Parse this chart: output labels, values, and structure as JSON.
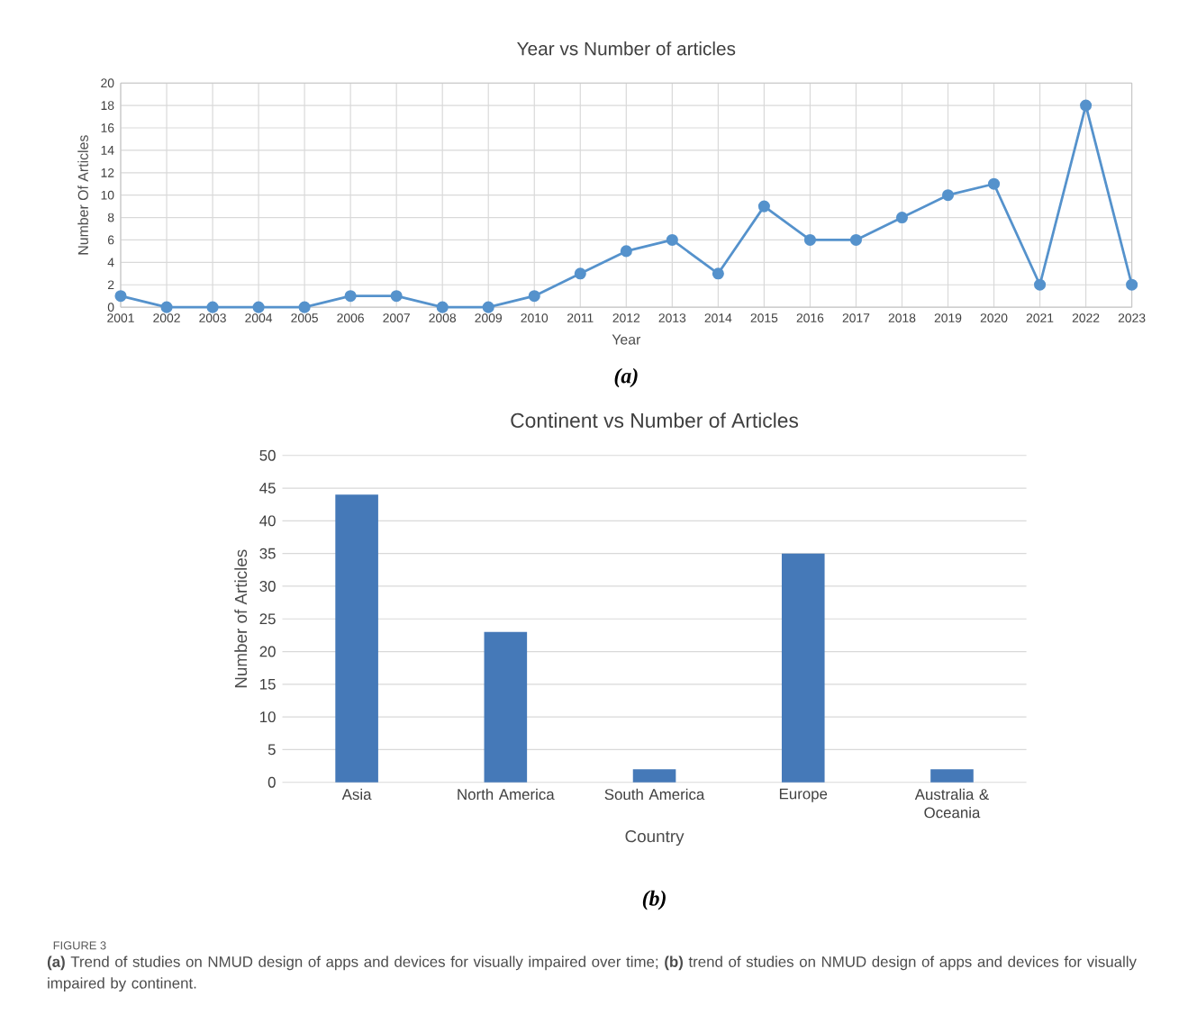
{
  "chart_data": [
    {
      "type": "line",
      "title": "Year vs Number of articles",
      "xlabel": "Year",
      "ylabel": "Number Of Articles",
      "categories": [
        "2001",
        "2002",
        "2003",
        "2004",
        "2005",
        "2006",
        "2007",
        "2008",
        "2009",
        "2010",
        "2011",
        "2012",
        "2013",
        "2014",
        "2015",
        "2016",
        "2017",
        "2018",
        "2019",
        "2020",
        "2021",
        "2022",
        "2023"
      ],
      "values": [
        1,
        0,
        0,
        0,
        0,
        1,
        1,
        0,
        0,
        1,
        3,
        5,
        6,
        3,
        9,
        6,
        6,
        8,
        10,
        11,
        2,
        18,
        2
      ],
      "color": "#5592cc",
      "marker": "circle",
      "grid": true,
      "ylim": [
        0,
        20
      ],
      "yticks": [
        0,
        2,
        4,
        6,
        8,
        10,
        12,
        14,
        16,
        18,
        20
      ],
      "annotations": [
        "(a)"
      ]
    },
    {
      "type": "bar",
      "title": "Continent vs Number of Articles",
      "xlabel": "Country",
      "ylabel": "Number of Articles",
      "categories": [
        "Asia",
        "North America",
        "South America",
        "Europe",
        "Australia & Oceania"
      ],
      "values": [
        44,
        23,
        2,
        35,
        2
      ],
      "color": "#4579b8",
      "grid": "y",
      "ylim": [
        0,
        50
      ],
      "yticks": [
        0,
        5,
        10,
        15,
        20,
        25,
        30,
        35,
        40,
        45,
        50
      ],
      "annotations": [
        "(b)",
        "FIGURE 3",
        "**(a)** Trend of studies on NMUD design of apps and devices for visually impaired over time; **(b)** trend of studies on NMUD design of apps and devices for visually impaired by continent."
      ]
    }
  ]
}
